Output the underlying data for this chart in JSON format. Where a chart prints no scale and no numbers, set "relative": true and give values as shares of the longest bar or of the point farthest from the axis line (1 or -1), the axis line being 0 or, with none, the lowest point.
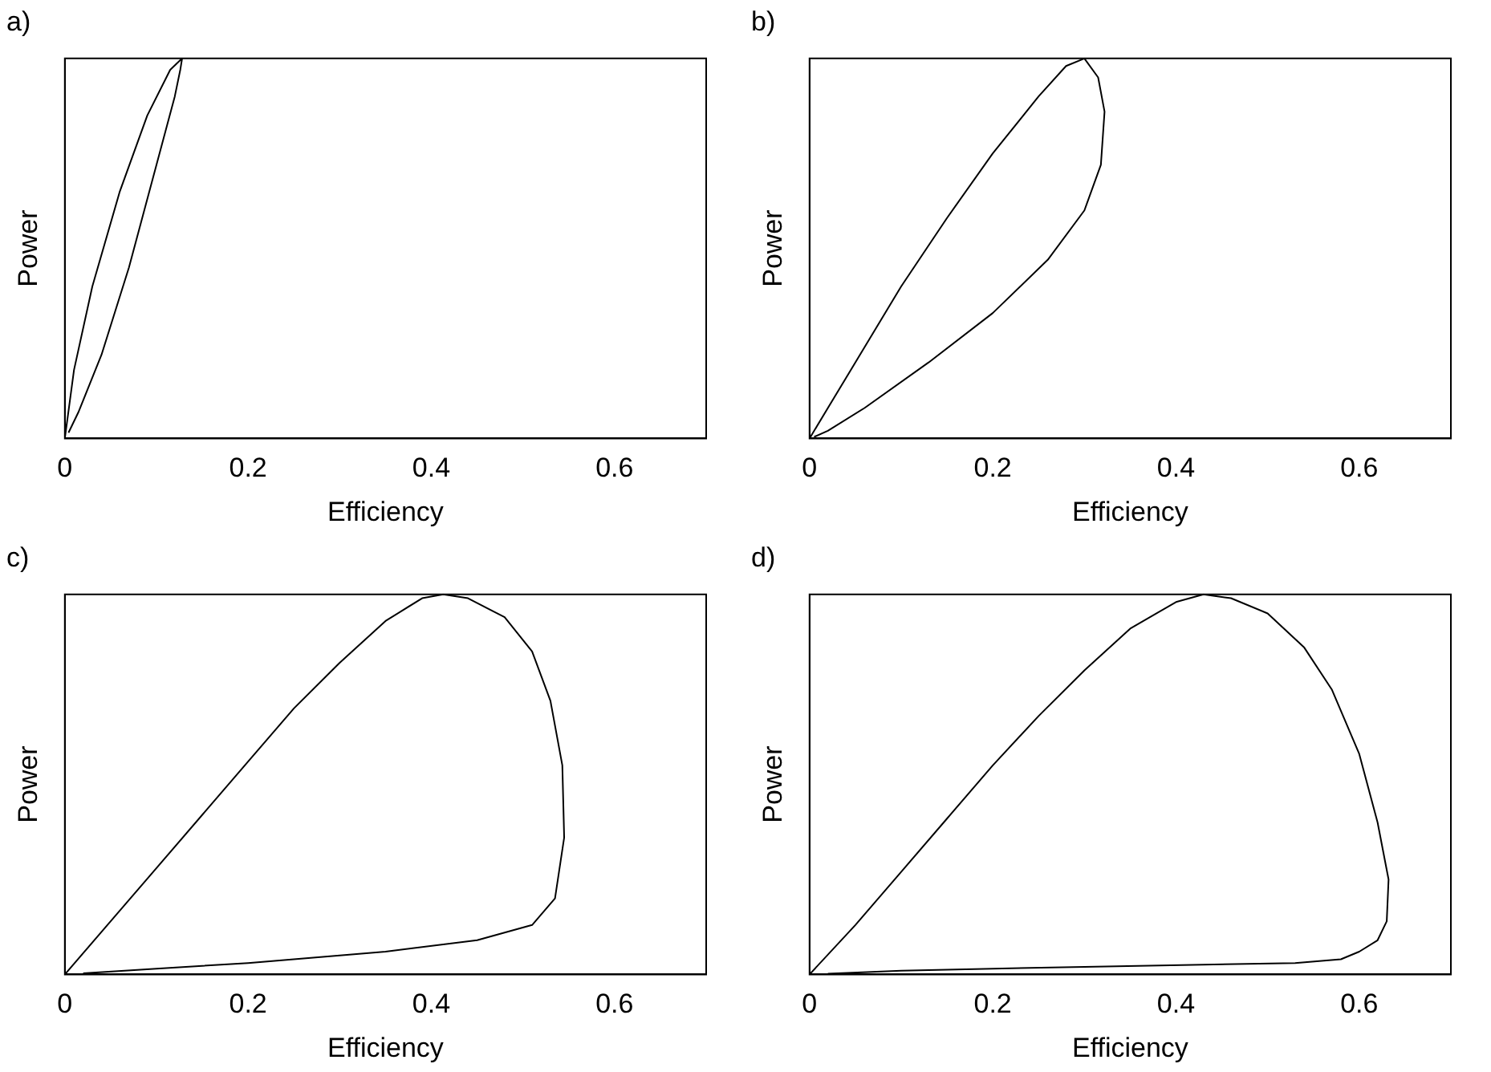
{
  "chart_data": [
    {
      "type": "line",
      "title": "a)",
      "xlabel": "Efficiency",
      "ylabel": "Power",
      "relative": true,
      "marker": "none",
      "xlim": [
        0,
        0.7
      ],
      "xticks": [
        0,
        0.2,
        0.4,
        0.6
      ],
      "series": [
        {
          "color": "#000000",
          "x": [
            0,
            0.01,
            0.03,
            0.06,
            0.09,
            0.115,
            0.128,
            0.126,
            0.12,
            0.1,
            0.07,
            0.04,
            0.015,
            0.004
          ],
          "values": [
            0,
            0.18,
            0.4,
            0.65,
            0.85,
            0.97,
            1,
            0.97,
            0.9,
            0.72,
            0.45,
            0.22,
            0.07,
            0.015
          ]
        }
      ]
    },
    {
      "type": "line",
      "title": "b)",
      "xlabel": "Efficiency",
      "ylabel": "Power",
      "relative": true,
      "marker": "none",
      "xlim": [
        0,
        0.7
      ],
      "xticks": [
        0,
        0.2,
        0.4,
        0.6
      ],
      "series": [
        {
          "color": "#000000",
          "x": [
            0,
            0.05,
            0.1,
            0.15,
            0.2,
            0.25,
            0.28,
            0.3,
            0.315,
            0.322,
            0.318,
            0.3,
            0.26,
            0.2,
            0.13,
            0.06,
            0.02,
            0.005
          ],
          "values": [
            0,
            0.2,
            0.4,
            0.58,
            0.75,
            0.9,
            0.98,
            1,
            0.95,
            0.86,
            0.72,
            0.6,
            0.47,
            0.33,
            0.2,
            0.08,
            0.02,
            0.004
          ]
        }
      ]
    },
    {
      "type": "line",
      "title": "c)",
      "xlabel": "Efficiency",
      "ylabel": "Power",
      "relative": true,
      "marker": "none",
      "xlim": [
        0,
        0.7
      ],
      "xticks": [
        0,
        0.2,
        0.4,
        0.6
      ],
      "series": [
        {
          "color": "#000000",
          "x": [
            0,
            0.05,
            0.1,
            0.15,
            0.2,
            0.25,
            0.3,
            0.35,
            0.39,
            0.413,
            0.44,
            0.48,
            0.51,
            0.53,
            0.543,
            0.545,
            0.535,
            0.51,
            0.45,
            0.35,
            0.2,
            0.1,
            0.02
          ],
          "values": [
            0,
            0.14,
            0.28,
            0.42,
            0.56,
            0.7,
            0.82,
            0.93,
            0.99,
            1,
            0.99,
            0.94,
            0.85,
            0.72,
            0.55,
            0.36,
            0.2,
            0.13,
            0.09,
            0.06,
            0.03,
            0.015,
            0.003
          ]
        }
      ]
    },
    {
      "type": "line",
      "title": "d)",
      "xlabel": "Efficiency",
      "ylabel": "Power",
      "relative": true,
      "marker": "none",
      "xlim": [
        0,
        0.7
      ],
      "xticks": [
        0,
        0.2,
        0.4,
        0.6
      ],
      "series": [
        {
          "color": "#000000",
          "x": [
            0,
            0.05,
            0.1,
            0.15,
            0.2,
            0.25,
            0.3,
            0.35,
            0.4,
            0.43,
            0.46,
            0.5,
            0.54,
            0.57,
            0.6,
            0.62,
            0.632,
            0.63,
            0.62,
            0.6,
            0.58,
            0.53,
            0.3,
            0.1,
            0.02
          ],
          "values": [
            0,
            0.13,
            0.27,
            0.41,
            0.55,
            0.68,
            0.8,
            0.91,
            0.98,
            1,
            0.99,
            0.95,
            0.86,
            0.75,
            0.58,
            0.4,
            0.25,
            0.14,
            0.09,
            0.06,
            0.04,
            0.03,
            0.02,
            0.01,
            0.002
          ]
        }
      ]
    }
  ]
}
